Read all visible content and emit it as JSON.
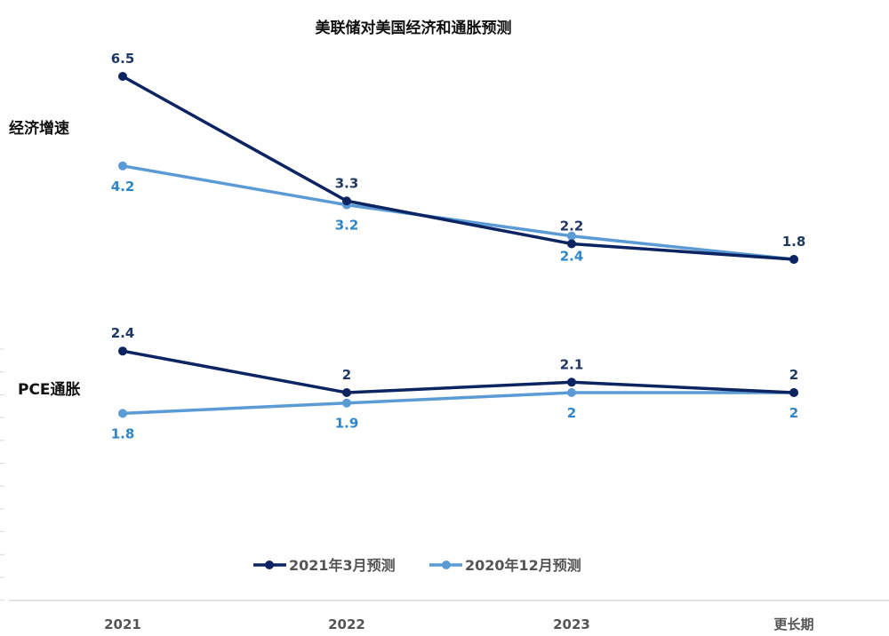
{
  "chart_data": {
    "type": "line",
    "title": "美联储对美国经济和通胀预测",
    "categories": [
      "2021",
      "2022",
      "2023",
      "更长期"
    ],
    "legend_placement": "bottom",
    "grid": false,
    "colors": {
      "series_2021_3": "#0c2461",
      "series_2020_12": "#5b9bd5",
      "label_2021_3": "#1f3864",
      "label_2020_12": "#2e86c9"
    },
    "series_names": [
      "2021年3月预测",
      "2020年12月预测"
    ],
    "panels": [
      {
        "label": "经济增速",
        "series": [
          {
            "name": "2021年3月预测",
            "values": [
              6.5,
              3.3,
              2.2,
              1.8
            ],
            "labels": [
              "6.5",
              "3.3",
              "2.2",
              "1.8"
            ]
          },
          {
            "name": "2020年12月预测",
            "values": [
              4.2,
              3.2,
              2.4,
              1.8
            ],
            "labels": [
              "4.2",
              "3.2",
              "2.4",
              null
            ]
          }
        ]
      },
      {
        "label": "PCE通胀",
        "series": [
          {
            "name": "2021年3月预测",
            "values": [
              2.4,
              2.0,
              2.1,
              2.0
            ],
            "labels": [
              "2.4",
              "2",
              "2.1",
              "2"
            ]
          },
          {
            "name": "2020年12月预测",
            "values": [
              1.8,
              1.9,
              2.0,
              2.0
            ],
            "labels": [
              "1.8",
              "1.9",
              "2",
              "2"
            ]
          }
        ]
      }
    ]
  }
}
